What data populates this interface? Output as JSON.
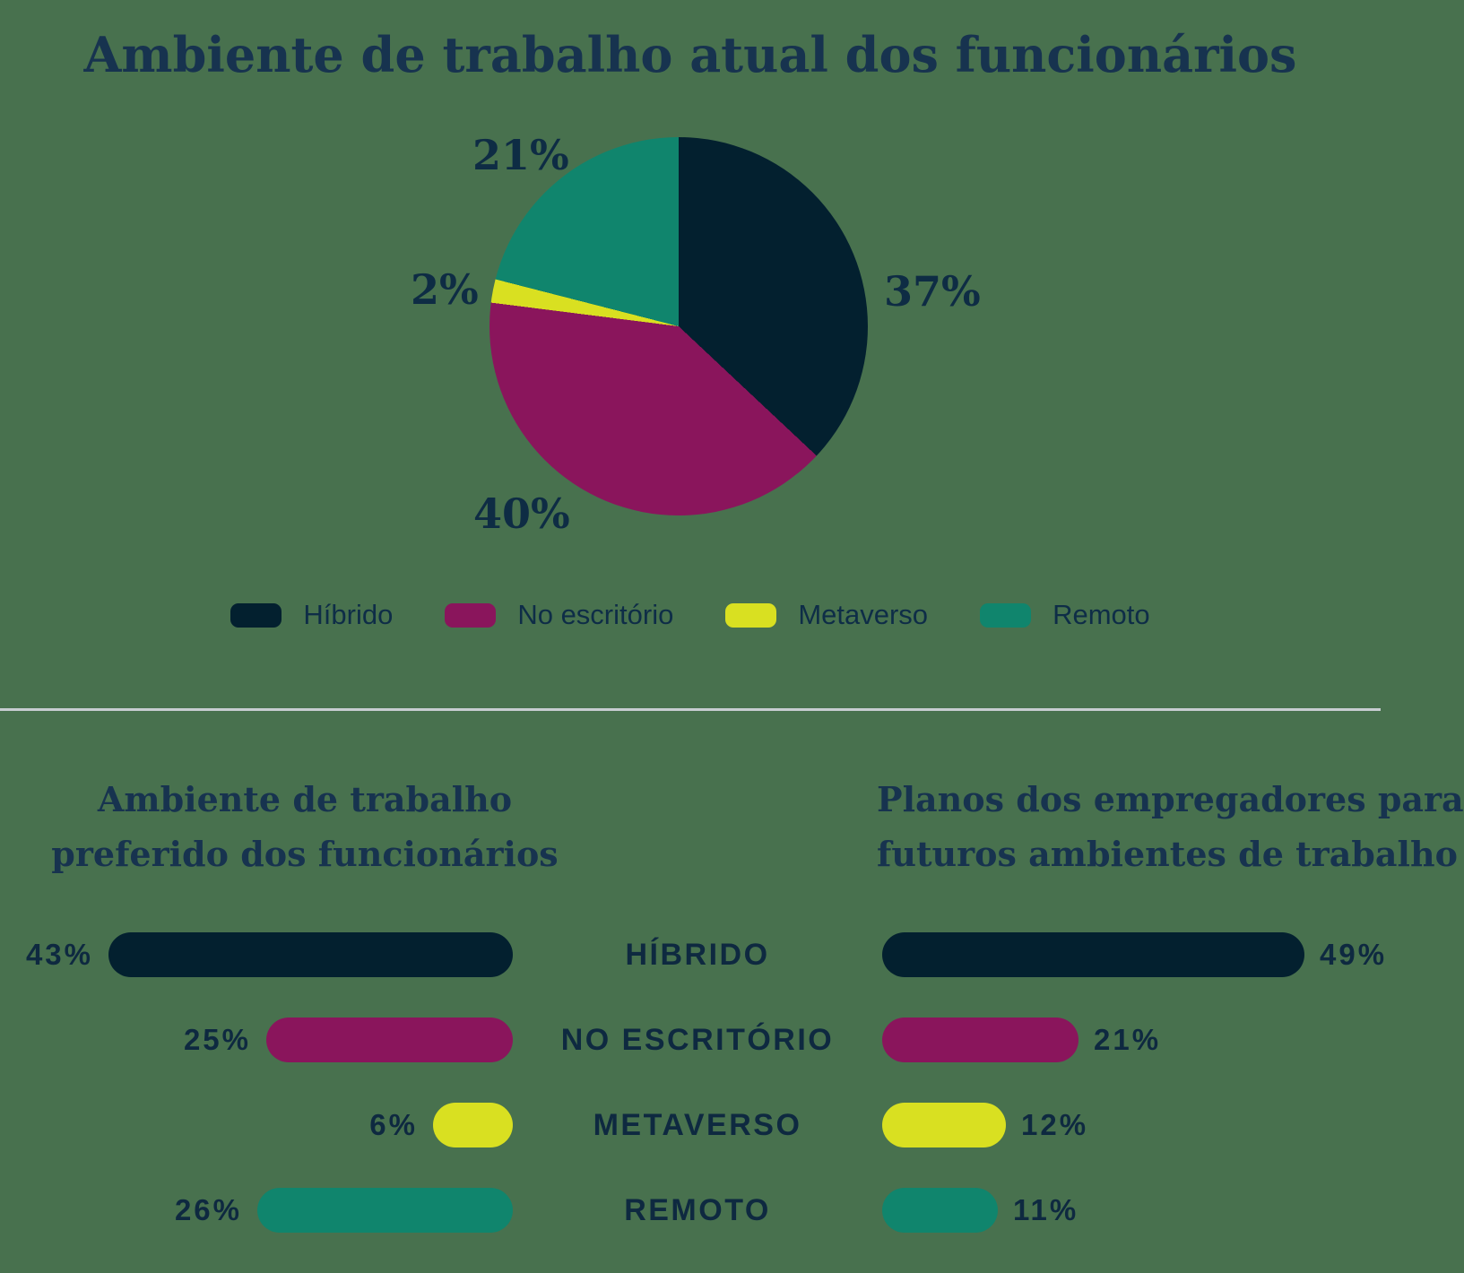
{
  "background_color": "#48714E",
  "palette": {
    "navy": "#03202F",
    "magenta": "#8A155C",
    "yellow": "#D9E021",
    "teal": "#10856D",
    "heading_text": "#17334F",
    "label_text": "#0E2940",
    "divider": "#C8CDD1"
  },
  "section_titles": {
    "employees_preferred": {
      "full": "Ambiente de trabalho preferido dos funcionários",
      "lines": [
        "Ambiente de trabalho",
        "preferido dos funcionários"
      ]
    },
    "employers_plans": {
      "full": "Planos dos empregadores para futuros ambientes de trabalho",
      "lines": [
        "Planos dos empregadores para",
        "futuros ambientes de trabalho"
      ]
    }
  },
  "chart_data": [
    {
      "type": "pie",
      "title": "Ambiente de trabalho atual dos funcionários",
      "labels": [
        "Híbrido",
        "No escritório",
        "Metaverso",
        "Remoto"
      ],
      "values": [
        37,
        40,
        2,
        21
      ],
      "data_labels": [
        "37%",
        "40%",
        "2%",
        "21%"
      ],
      "colors": [
        "#03202F",
        "#8A155C",
        "#D9E021",
        "#10856D"
      ],
      "start_angle": "12-oclock",
      "direction": "clockwise",
      "legend_position": "bottom"
    },
    {
      "type": "bar",
      "orientation": "horizontal",
      "categories": [
        "HÍBRIDO",
        "NO ESCRITÓRIO",
        "METAVERSO",
        "REMOTO"
      ],
      "colors_by_category": [
        "#03202F",
        "#8A155C",
        "#D9E021",
        "#10856D"
      ],
      "xlim": [
        0,
        50
      ],
      "grid": false,
      "series": [
        {
          "name": "Ambiente de trabalho preferido dos funcionários",
          "values": [
            43,
            25,
            6,
            26
          ],
          "data_labels": [
            "43%",
            "25%",
            "6%",
            "26%"
          ],
          "bar_alignment": "right",
          "label_position": "left-of-bar"
        },
        {
          "name": "Planos dos empregadores para futuros ambientes de trabalho",
          "values": [
            49,
            21,
            12,
            11
          ],
          "data_labels": [
            "49%",
            "21%",
            "12%",
            "11%"
          ],
          "bar_alignment": "left",
          "label_position": "right-of-bar"
        }
      ]
    }
  ]
}
